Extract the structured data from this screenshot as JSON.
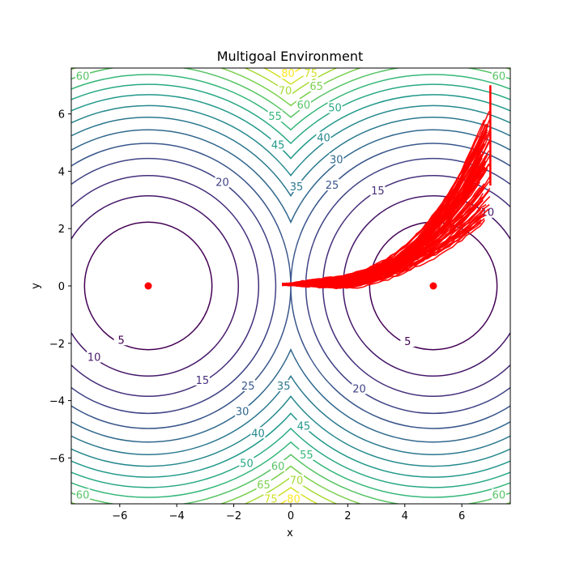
{
  "chart_data": {
    "type": "contour",
    "title": "Multigoal Environment",
    "xlabel": "x",
    "ylabel": "y",
    "xlim": [
      -7.7,
      7.7
    ],
    "ylim": [
      -7.6,
      7.6
    ],
    "xticks": [
      -6,
      -4,
      -2,
      0,
      2,
      4,
      6
    ],
    "xtick_labels": [
      "−6",
      "−4",
      "−2",
      "0",
      "2",
      "4",
      "6"
    ],
    "yticks": [
      -6,
      -4,
      -2,
      0,
      2,
      4,
      6
    ],
    "ytick_labels": [
      "−6",
      "−4",
      "−2",
      "0",
      "2",
      "4",
      "6"
    ],
    "goals": [
      [
        -5,
        0
      ],
      [
        5,
        0
      ]
    ],
    "goal_color": "#ff0000",
    "contour_levels": [
      5,
      10,
      15,
      20,
      25,
      30,
      35,
      40,
      45,
      50,
      55,
      60,
      65,
      70,
      75,
      80
    ],
    "contour_function": "min over goals of squared distance",
    "colormap": "viridis",
    "contour_labels": [
      {
        "level": "5",
        "x": -5.95,
        "y": -1.9
      },
      {
        "level": "10",
        "x": -6.9,
        "y": -2.5
      },
      {
        "level": "15",
        "x": -3.1,
        "y": -3.3
      },
      {
        "level": "20",
        "x": -2.4,
        "y": 3.6
      },
      {
        "level": "25",
        "x": -1.5,
        "y": -3.5
      },
      {
        "level": "30",
        "x": -1.7,
        "y": -4.4
      },
      {
        "level": "35",
        "x": -0.25,
        "y": -3.5
      },
      {
        "level": "40",
        "x": -1.15,
        "y": -5.15
      },
      {
        "level": "45",
        "x": -0.45,
        "y": 4.9
      },
      {
        "level": "50",
        "x": -1.55,
        "y": -6.2
      },
      {
        "level": "55",
        "x": -0.55,
        "y": 5.9
      },
      {
        "level": "60",
        "x": -7.3,
        "y": 7.3
      },
      {
        "level": "65",
        "x": -0.95,
        "y": -6.95
      },
      {
        "level": "70",
        "x": -0.2,
        "y": 6.8
      },
      {
        "level": "75",
        "x": 0.7,
        "y": 7.4
      },
      {
        "level": "80",
        "x": -0.1,
        "y": 7.4
      },
      {
        "level": "35",
        "x": 0.2,
        "y": 3.45
      },
      {
        "level": "25",
        "x": 1.45,
        "y": 3.5
      },
      {
        "level": "30",
        "x": 1.6,
        "y": 4.4
      },
      {
        "level": "40",
        "x": 1.15,
        "y": 5.15
      },
      {
        "level": "50",
        "x": 1.55,
        "y": 6.2
      },
      {
        "level": "60",
        "x": 0.45,
        "y": 6.3
      },
      {
        "level": "65",
        "x": 0.9,
        "y": 6.95
      },
      {
        "level": "15",
        "x": 3.05,
        "y": 3.3
      },
      {
        "level": "10",
        "x": 6.9,
        "y": 2.55
      },
      {
        "level": "5",
        "x": 4.1,
        "y": -1.95
      },
      {
        "level": "20",
        "x": 2.4,
        "y": -3.6
      },
      {
        "level": "45",
        "x": 0.45,
        "y": -4.9
      },
      {
        "level": "55",
        "x": 0.55,
        "y": -5.9
      },
      {
        "level": "60",
        "x": -0.45,
        "y": -6.3
      },
      {
        "level": "70",
        "x": 0.2,
        "y": -6.8
      },
      {
        "level": "75",
        "x": -0.7,
        "y": -7.45
      },
      {
        "level": "80",
        "x": 0.1,
        "y": -7.45
      },
      {
        "level": "60",
        "x": -7.3,
        "y": -7.3
      },
      {
        "level": "60",
        "x": 7.3,
        "y": 7.3
      },
      {
        "level": "60",
        "x": 7.3,
        "y": -7.3
      }
    ],
    "trajectories": {
      "color": "#ff0000",
      "count": 80,
      "start": [
        0,
        0
      ],
      "end_region": {
        "x": [
          6.0,
          7.0
        ],
        "y": [
          0.5,
          7.0
        ]
      },
      "description": "bundle of red paths from origin curving to upper right near x=7"
    },
    "grid": false
  }
}
